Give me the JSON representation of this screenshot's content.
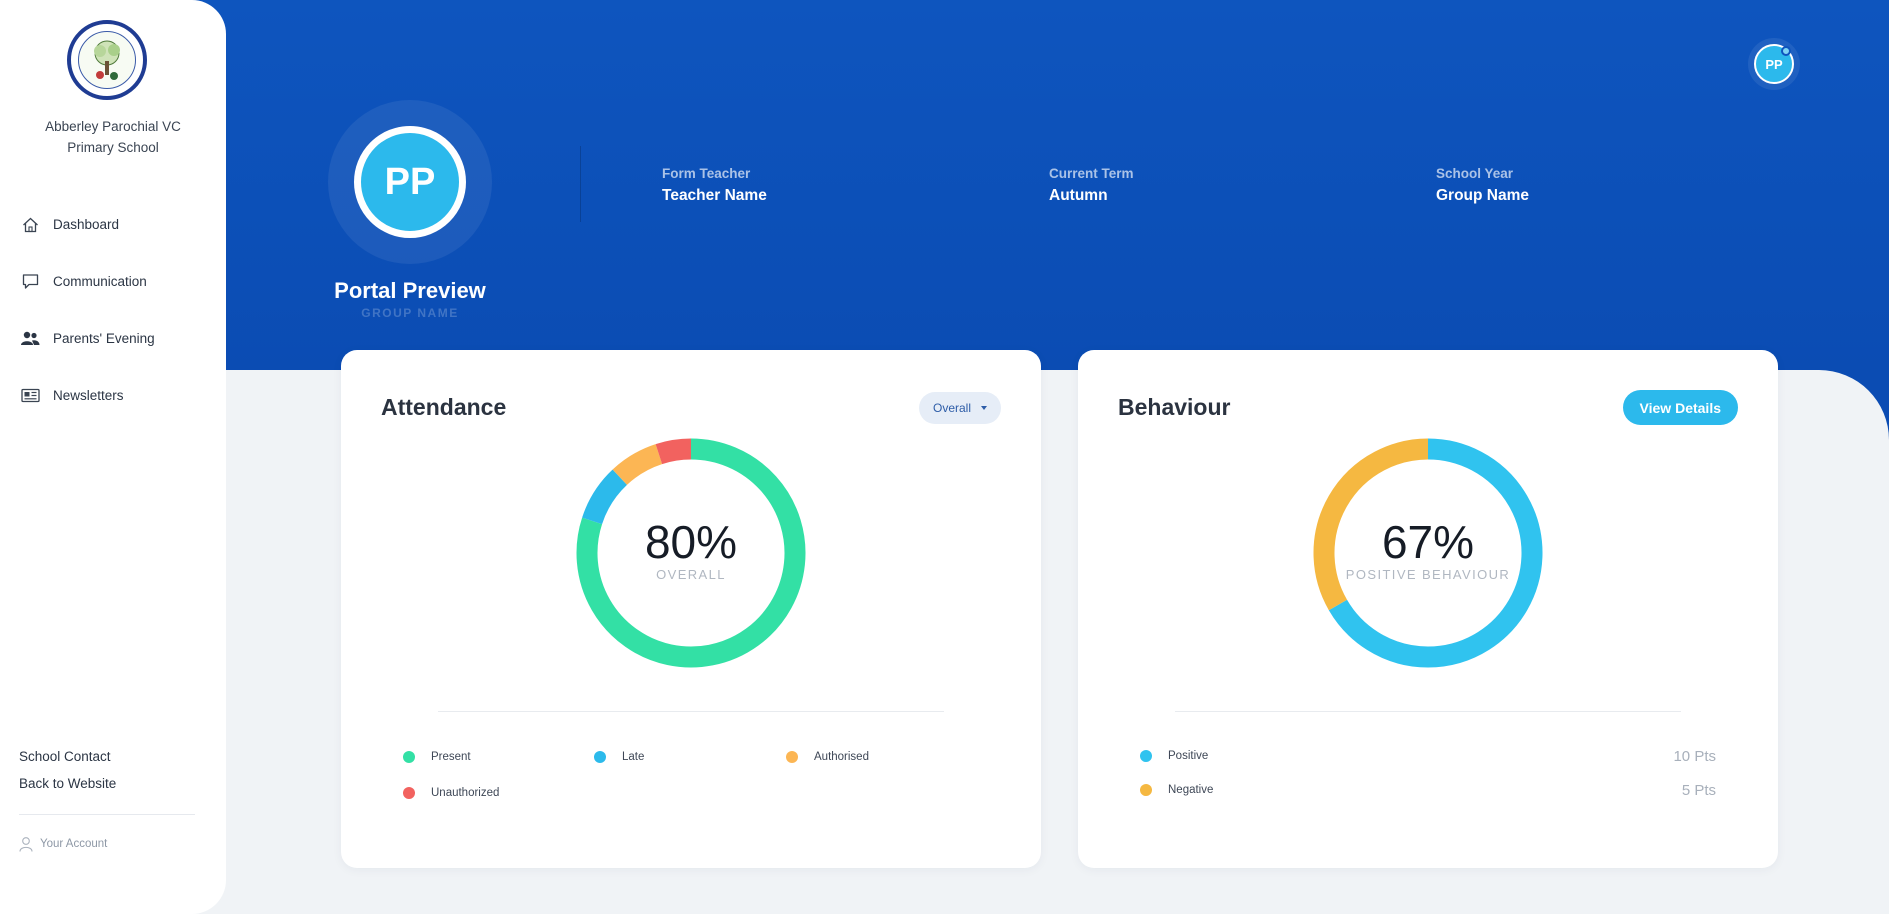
{
  "sidebar": {
    "school_name": "Abberley Parochial VC Primary School",
    "logo_icon": "school-crest-icon",
    "nav": [
      {
        "label": "Dashboard",
        "icon": "home-icon"
      },
      {
        "label": "Communication",
        "icon": "chat-icon"
      },
      {
        "label": "Parents' Evening",
        "icon": "users-icon"
      },
      {
        "label": "Newsletters",
        "icon": "newspaper-icon"
      }
    ],
    "links": {
      "school_contact": "School Contact",
      "back_to_website": "Back to Website"
    },
    "account": "Your Account"
  },
  "header": {
    "user_initials": "PP",
    "profile_initials": "PP",
    "profile_name": "Portal Preview",
    "profile_group": "GROUP NAME",
    "info": [
      {
        "label": "Form Teacher",
        "value": "Teacher Name"
      },
      {
        "label": "Current Term",
        "value": "Autumn"
      },
      {
        "label": "School Year",
        "value": "Group Name"
      }
    ]
  },
  "attendance": {
    "title": "Attendance",
    "filter_label": "Overall",
    "value_text": "80%",
    "center_label": "OVERALL",
    "legend": {
      "present": "Present",
      "late": "Late",
      "authorised": "Authorised",
      "unauthorized": "Unauthorized"
    },
    "colors": {
      "present": "#33e0a5",
      "late": "#2cbaeb",
      "authorised": "#fcb654",
      "unauthorized": "#f2625f"
    }
  },
  "behaviour": {
    "title": "Behaviour",
    "button_label": "View Details",
    "value_text": "67%",
    "center_label": "POSITIVE BEHAVIOUR",
    "legend": {
      "positive": "Positive",
      "negative": "Negative"
    },
    "points": {
      "positive": "10 Pts",
      "negative": "5 Pts"
    },
    "colors": {
      "positive": "#30c3ef",
      "negative": "#f5b841"
    }
  },
  "chart_data": [
    {
      "type": "pie",
      "categories": [
        "Present",
        "Late",
        "Authorised",
        "Unauthorized"
      ],
      "values": [
        80,
        8,
        7,
        5
      ]
    },
    {
      "type": "pie",
      "categories": [
        "Positive",
        "Negative"
      ],
      "values": [
        10,
        5
      ]
    }
  ]
}
